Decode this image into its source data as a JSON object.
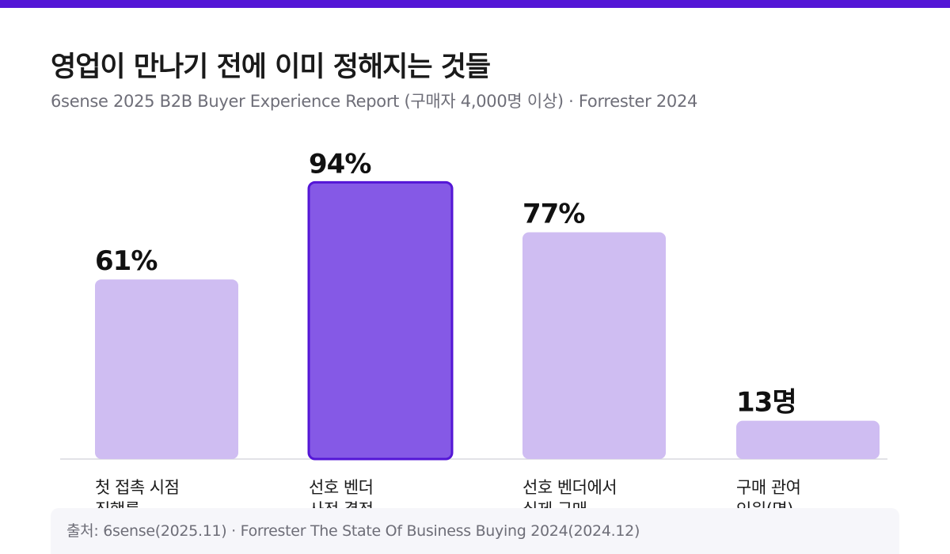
{
  "header": {
    "title": "영업이 만나기 전에 이미 정해지는 것들",
    "subtitle": "6sense 2025 B2B Buyer Experience Report (구매자 4,000명 이상) · Forrester 2024"
  },
  "colors": {
    "accent": "#5416d6",
    "bar_default": "#cfbdf2",
    "bar_highlight": "#8559e6",
    "bar_highlight_stroke": "#5416d6"
  },
  "chart_data": {
    "type": "bar",
    "categories": [
      "첫 접촉 시점\n직행률",
      "선호 벤더\n사전 결정",
      "선호 벤더에서\n실제 구매",
      "구매 관여\n인원(명)"
    ],
    "values": [
      61,
      94,
      77,
      13
    ],
    "value_labels": [
      "61%",
      "94%",
      "77%",
      "13명"
    ],
    "highlight_index": 1,
    "ylim": [
      0,
      100
    ],
    "grid": false,
    "legend": "none"
  },
  "footer": {
    "source": "출처: 6sense(2025.11) · Forrester The State Of Business Buying 2024(2024.12)"
  }
}
